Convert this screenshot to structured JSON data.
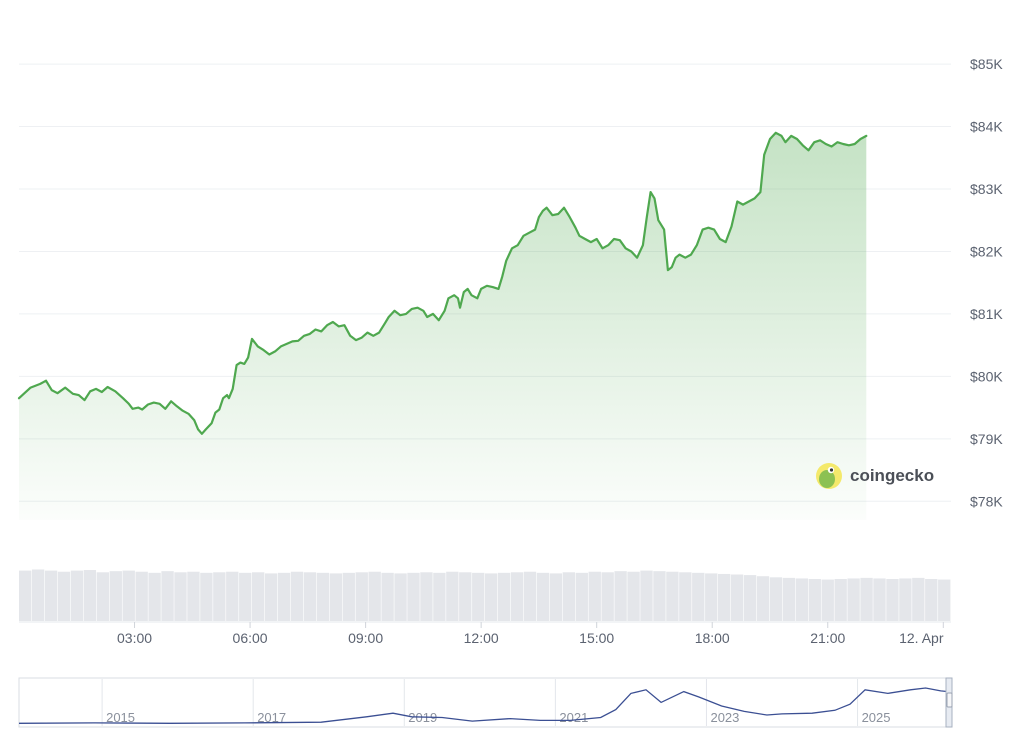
{
  "chart_data": {
    "type": "line",
    "title": "",
    "xlabel": "",
    "ylabel": "",
    "currency_prefix": "$",
    "x_range_hours": [
      0,
      24.2
    ],
    "ylim": [
      77700,
      85450
    ],
    "yticks": [
      78000,
      79000,
      80000,
      81000,
      82000,
      83000,
      84000,
      85000
    ],
    "ytick_labels": [
      "$78K",
      "$79K",
      "$80K",
      "$81K",
      "$82K",
      "$83K",
      "$84K",
      "$85K"
    ],
    "xticks": [
      3,
      6,
      9,
      12,
      15,
      18,
      21,
      24
    ],
    "xtick_labels": [
      "03:00",
      "06:00",
      "09:00",
      "12:00",
      "15:00",
      "18:00",
      "21:00",
      "12. Apr"
    ],
    "grid": true,
    "series": [
      {
        "color": "#4fa84f",
        "fill_color": "#4fa84f",
        "points": [
          [
            0.0,
            79650
          ],
          [
            0.3,
            79820
          ],
          [
            0.55,
            79880
          ],
          [
            0.7,
            79930
          ],
          [
            0.85,
            79780
          ],
          [
            1.0,
            79730
          ],
          [
            1.2,
            79820
          ],
          [
            1.4,
            79720
          ],
          [
            1.55,
            79700
          ],
          [
            1.7,
            79620
          ],
          [
            1.85,
            79760
          ],
          [
            2.0,
            79800
          ],
          [
            2.15,
            79750
          ],
          [
            2.3,
            79830
          ],
          [
            2.5,
            79760
          ],
          [
            2.7,
            79650
          ],
          [
            2.85,
            79560
          ],
          [
            2.95,
            79480
          ],
          [
            3.1,
            79500
          ],
          [
            3.2,
            79470
          ],
          [
            3.35,
            79550
          ],
          [
            3.5,
            79580
          ],
          [
            3.65,
            79560
          ],
          [
            3.8,
            79480
          ],
          [
            3.95,
            79600
          ],
          [
            4.1,
            79520
          ],
          [
            4.25,
            79450
          ],
          [
            4.4,
            79400
          ],
          [
            4.55,
            79300
          ],
          [
            4.65,
            79150
          ],
          [
            4.75,
            79080
          ],
          [
            4.85,
            79150
          ],
          [
            5.0,
            79250
          ],
          [
            5.1,
            79420
          ],
          [
            5.2,
            79470
          ],
          [
            5.3,
            79650
          ],
          [
            5.4,
            79700
          ],
          [
            5.45,
            79650
          ],
          [
            5.55,
            79800
          ],
          [
            5.65,
            80180
          ],
          [
            5.75,
            80220
          ],
          [
            5.85,
            80200
          ],
          [
            5.95,
            80300
          ],
          [
            6.05,
            80600
          ],
          [
            6.2,
            80480
          ],
          [
            6.35,
            80420
          ],
          [
            6.5,
            80350
          ],
          [
            6.65,
            80400
          ],
          [
            6.8,
            80480
          ],
          [
            6.95,
            80520
          ],
          [
            7.1,
            80560
          ],
          [
            7.25,
            80570
          ],
          [
            7.4,
            80650
          ],
          [
            7.55,
            80680
          ],
          [
            7.7,
            80750
          ],
          [
            7.85,
            80720
          ],
          [
            8.0,
            80820
          ],
          [
            8.15,
            80870
          ],
          [
            8.3,
            80800
          ],
          [
            8.45,
            80820
          ],
          [
            8.6,
            80650
          ],
          [
            8.75,
            80580
          ],
          [
            8.9,
            80620
          ],
          [
            9.05,
            80700
          ],
          [
            9.2,
            80650
          ],
          [
            9.35,
            80700
          ],
          [
            9.5,
            80850
          ],
          [
            9.6,
            80950
          ],
          [
            9.75,
            81050
          ],
          [
            9.9,
            80980
          ],
          [
            10.05,
            81000
          ],
          [
            10.2,
            81080
          ],
          [
            10.35,
            81100
          ],
          [
            10.5,
            81050
          ],
          [
            10.6,
            80950
          ],
          [
            10.75,
            81000
          ],
          [
            10.9,
            80900
          ],
          [
            11.05,
            81050
          ],
          [
            11.15,
            81250
          ],
          [
            11.3,
            81300
          ],
          [
            11.4,
            81250
          ],
          [
            11.45,
            81100
          ],
          [
            11.55,
            81350
          ],
          [
            11.65,
            81400
          ],
          [
            11.75,
            81300
          ],
          [
            11.9,
            81250
          ],
          [
            12.0,
            81400
          ],
          [
            12.15,
            81450
          ],
          [
            12.3,
            81430
          ],
          [
            12.45,
            81400
          ],
          [
            12.55,
            81600
          ],
          [
            12.65,
            81850
          ],
          [
            12.8,
            82050
          ],
          [
            12.95,
            82100
          ],
          [
            13.1,
            82250
          ],
          [
            13.25,
            82300
          ],
          [
            13.4,
            82350
          ],
          [
            13.5,
            82550
          ],
          [
            13.6,
            82650
          ],
          [
            13.7,
            82700
          ],
          [
            13.85,
            82580
          ],
          [
            14.0,
            82600
          ],
          [
            14.15,
            82700
          ],
          [
            14.3,
            82550
          ],
          [
            14.45,
            82380
          ],
          [
            14.55,
            82250
          ],
          [
            14.7,
            82200
          ],
          [
            14.85,
            82150
          ],
          [
            15.0,
            82200
          ],
          [
            15.15,
            82050
          ],
          [
            15.3,
            82100
          ],
          [
            15.45,
            82200
          ],
          [
            15.6,
            82180
          ],
          [
            15.75,
            82050
          ],
          [
            15.9,
            82000
          ],
          [
            16.05,
            81900
          ],
          [
            16.2,
            82100
          ],
          [
            16.3,
            82550
          ],
          [
            16.4,
            82950
          ],
          [
            16.5,
            82850
          ],
          [
            16.6,
            82500
          ],
          [
            16.75,
            82350
          ],
          [
            16.85,
            81700
          ],
          [
            16.95,
            81750
          ],
          [
            17.05,
            81900
          ],
          [
            17.15,
            81950
          ],
          [
            17.3,
            81900
          ],
          [
            17.45,
            81950
          ],
          [
            17.6,
            82100
          ],
          [
            17.75,
            82350
          ],
          [
            17.9,
            82380
          ],
          [
            18.05,
            82350
          ],
          [
            18.2,
            82200
          ],
          [
            18.35,
            82150
          ],
          [
            18.5,
            82400
          ],
          [
            18.65,
            82800
          ],
          [
            18.8,
            82750
          ],
          [
            18.95,
            82800
          ],
          [
            19.1,
            82850
          ],
          [
            19.25,
            82950
          ],
          [
            19.35,
            83550
          ],
          [
            19.5,
            83800
          ],
          [
            19.65,
            83900
          ],
          [
            19.8,
            83850
          ],
          [
            19.9,
            83750
          ],
          [
            20.05,
            83850
          ],
          [
            20.2,
            83800
          ],
          [
            20.35,
            83700
          ],
          [
            20.5,
            83620
          ],
          [
            20.65,
            83750
          ],
          [
            20.8,
            83780
          ],
          [
            20.95,
            83720
          ],
          [
            21.1,
            83680
          ],
          [
            21.25,
            83750
          ],
          [
            21.4,
            83720
          ],
          [
            21.55,
            83700
          ],
          [
            21.7,
            83720
          ],
          [
            21.85,
            83800
          ],
          [
            22.0,
            83850
          ]
        ]
      }
    ],
    "volume": {
      "color": "#e4e6ea",
      "values": [
        0.9,
        0.92,
        0.9,
        0.88,
        0.9,
        0.91,
        0.87,
        0.89,
        0.9,
        0.88,
        0.86,
        0.89,
        0.87,
        0.88,
        0.86,
        0.87,
        0.88,
        0.86,
        0.87,
        0.85,
        0.86,
        0.88,
        0.87,
        0.86,
        0.85,
        0.86,
        0.87,
        0.88,
        0.86,
        0.85,
        0.86,
        0.87,
        0.86,
        0.88,
        0.87,
        0.86,
        0.85,
        0.86,
        0.87,
        0.88,
        0.86,
        0.85,
        0.87,
        0.86,
        0.88,
        0.87,
        0.89,
        0.88,
        0.9,
        0.89,
        0.88,
        0.87,
        0.86,
        0.85,
        0.84,
        0.83,
        0.82,
        0.8,
        0.78,
        0.77,
        0.76,
        0.75,
        0.74,
        0.75,
        0.76,
        0.77,
        0.76,
        0.75,
        0.76,
        0.77,
        0.75,
        0.74
      ]
    },
    "navigator": {
      "year_labels": [
        "2015",
        "2017",
        "2019",
        "2021",
        "2023",
        "2025"
      ],
      "line_color": "#3b4f93",
      "points": [
        [
          2013.0,
          0.02
        ],
        [
          2014.0,
          0.03
        ],
        [
          2015.0,
          0.02
        ],
        [
          2016.0,
          0.03
        ],
        [
          2017.0,
          0.05
        ],
        [
          2017.6,
          0.2
        ],
        [
          2017.95,
          0.3
        ],
        [
          2018.2,
          0.2
        ],
        [
          2018.6,
          0.18
        ],
        [
          2019.0,
          0.08
        ],
        [
          2019.5,
          0.15
        ],
        [
          2019.9,
          0.1
        ],
        [
          2020.3,
          0.1
        ],
        [
          2020.7,
          0.18
        ],
        [
          2020.9,
          0.4
        ],
        [
          2021.1,
          0.85
        ],
        [
          2021.3,
          0.95
        ],
        [
          2021.5,
          0.6
        ],
        [
          2021.8,
          0.9
        ],
        [
          2022.0,
          0.75
        ],
        [
          2022.3,
          0.5
        ],
        [
          2022.6,
          0.35
        ],
        [
          2022.9,
          0.25
        ],
        [
          2023.1,
          0.28
        ],
        [
          2023.5,
          0.3
        ],
        [
          2023.8,
          0.38
        ],
        [
          2024.0,
          0.55
        ],
        [
          2024.2,
          0.95
        ],
        [
          2024.5,
          0.85
        ],
        [
          2024.8,
          0.95
        ],
        [
          2025.0,
          1.0
        ],
        [
          2025.2,
          0.92
        ],
        [
          2025.3,
          0.9
        ]
      ]
    }
  },
  "branding": {
    "logo_icon": "gecko-icon",
    "logo_text": "coingecko"
  }
}
